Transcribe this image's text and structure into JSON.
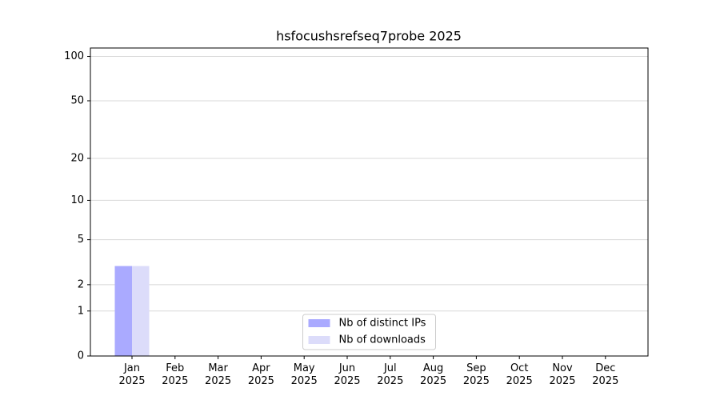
{
  "chart_data": {
    "type": "bar",
    "title": "hsfocushsrefseq7probe 2025",
    "categories": [
      "Jan 2025",
      "Feb 2025",
      "Mar 2025",
      "Apr 2025",
      "May 2025",
      "Jun 2025",
      "Jul 2025",
      "Aug 2025",
      "Sep 2025",
      "Oct 2025",
      "Nov 2025",
      "Dec 2025"
    ],
    "series": [
      {
        "name": "Nb of distinct IPs",
        "color": "#aaaaff",
        "values": [
          3,
          0,
          0,
          0,
          0,
          0,
          0,
          0,
          0,
          0,
          0,
          0
        ]
      },
      {
        "name": "Nb of downloads",
        "color": "#dcdcfa",
        "values": [
          3,
          0,
          0,
          0,
          0,
          0,
          0,
          0,
          0,
          0,
          0,
          0
        ]
      }
    ],
    "y_scale": "log1p",
    "ylim": [
      0,
      114
    ],
    "yticks": [
      0,
      1,
      2,
      5,
      10,
      20,
      50,
      100
    ],
    "grid": true,
    "legend": "lower center"
  }
}
